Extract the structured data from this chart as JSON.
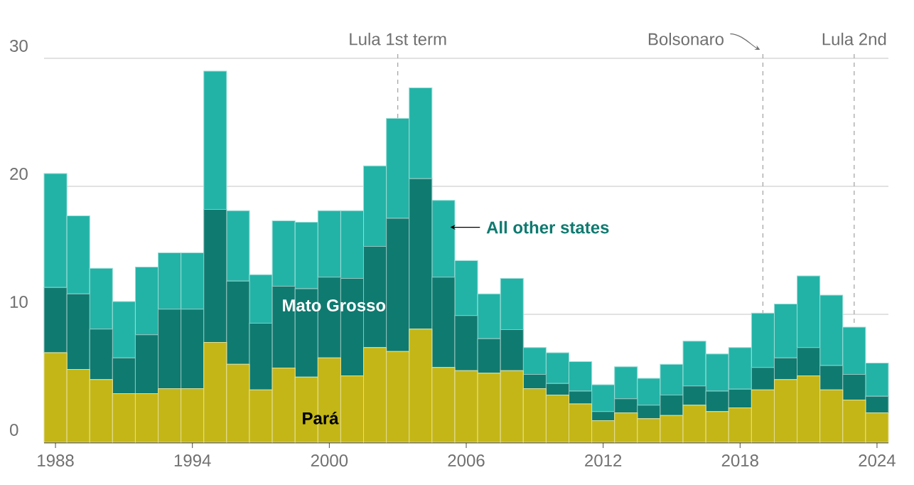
{
  "chart_data": {
    "type": "bar",
    "stacked": true,
    "x": [
      1988,
      1989,
      1990,
      1991,
      1992,
      1993,
      1994,
      1995,
      1996,
      1997,
      1998,
      1999,
      2000,
      2001,
      2002,
      2003,
      2004,
      2005,
      2006,
      2007,
      2008,
      2009,
      2010,
      2011,
      2012,
      2013,
      2014,
      2015,
      2016,
      2017,
      2018,
      2019,
      2020,
      2021,
      2022,
      2023,
      2024
    ],
    "series": [
      {
        "name": "Pará",
        "color": "#c4b616",
        "values": [
          7.0,
          5.7,
          4.9,
          3.8,
          3.8,
          4.2,
          4.2,
          7.8,
          6.1,
          4.1,
          5.8,
          5.1,
          6.6,
          5.2,
          7.4,
          7.1,
          8.85,
          5.85,
          5.6,
          5.4,
          5.6,
          4.2,
          3.7,
          3.0,
          1.7,
          2.3,
          1.85,
          2.1,
          2.9,
          2.4,
          2.7,
          4.1,
          4.9,
          5.2,
          4.1,
          3.3,
          2.3
        ]
      },
      {
        "name": "Mato Grosso",
        "color": "#0f7a70",
        "values": [
          5.1,
          5.9,
          3.95,
          2.8,
          4.6,
          6.2,
          6.2,
          10.4,
          6.5,
          5.2,
          6.4,
          6.9,
          6.3,
          7.6,
          7.9,
          10.4,
          11.75,
          7.05,
          4.3,
          2.7,
          3.2,
          1.1,
          0.9,
          1.0,
          0.7,
          1.1,
          1.05,
          1.6,
          1.5,
          1.6,
          1.45,
          1.75,
          1.7,
          2.2,
          1.9,
          2.0,
          1.3
        ]
      },
      {
        "name": "All other states",
        "color": "#22b3a6",
        "values": [
          8.9,
          6.1,
          4.75,
          4.4,
          5.3,
          4.4,
          4.4,
          10.8,
          5.5,
          3.8,
          5.1,
          5.2,
          5.2,
          5.3,
          6.3,
          7.8,
          7.1,
          6.0,
          4.3,
          3.5,
          4.0,
          2.1,
          2.4,
          2.3,
          2.1,
          2.5,
          2.1,
          2.4,
          3.5,
          2.9,
          3.25,
          4.25,
          4.2,
          5.6,
          5.5,
          3.7,
          2.6
        ]
      }
    ],
    "xlim": [
      1987.5,
      2024.5
    ],
    "xticks": [
      1988,
      1994,
      2000,
      2006,
      2012,
      2018,
      2024
    ],
    "ylim": [
      0,
      30
    ],
    "yticks": [
      0,
      10,
      20,
      30
    ],
    "grid": "y",
    "ref_lines": [
      {
        "axis": "x",
        "value": 2003,
        "label": "Lula 1st term",
        "color": "#a0a0a0",
        "line_style": "dashed"
      },
      {
        "axis": "x",
        "value": 2019,
        "label": "Bolsonaro",
        "color": "#a0a0a0",
        "line_style": "dashed"
      },
      {
        "axis": "x",
        "value": 2023,
        "label": "Lula 2nd",
        "color": "#a0a0a0",
        "line_style": "dashed"
      }
    ]
  }
}
